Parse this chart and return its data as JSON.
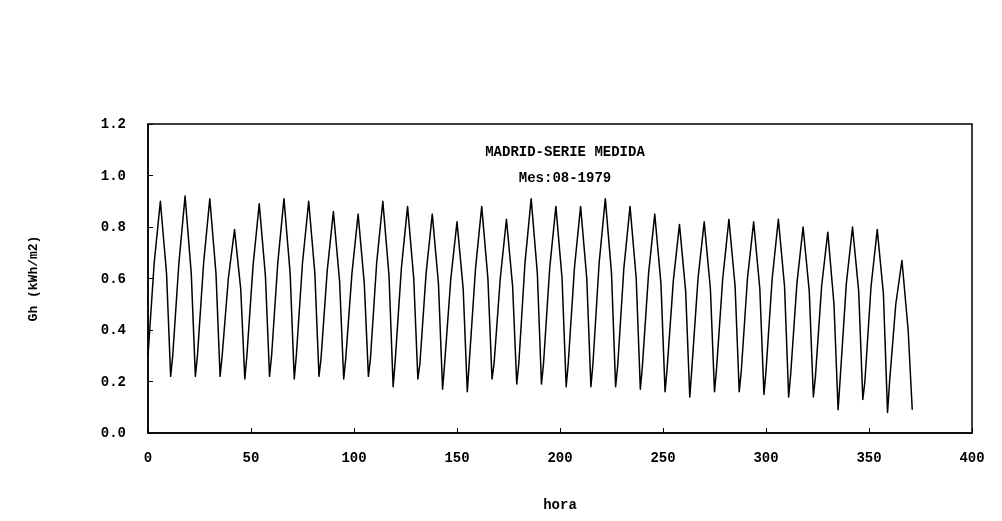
{
  "chart_data": {
    "type": "line",
    "title": "MADRID-SERIE MEDIDA",
    "subtitle": "Mes:08-1979",
    "xlabel": "hora",
    "ylabel": "Gh (kWh/m2)",
    "xlim": [
      0,
      400
    ],
    "xticks": [
      0,
      50,
      100,
      150,
      200,
      250,
      300,
      350,
      400
    ],
    "ylim": [
      0,
      1.2
    ],
    "yticks": [
      {
        "value": 0,
        "label": "0.0"
      },
      {
        "value": 0.2,
        "label": "0.2"
      },
      {
        "value": 0.4,
        "label": "0.4"
      },
      {
        "value": 0.6,
        "label": "0.6"
      },
      {
        "value": 0.8,
        "label": "0.8"
      },
      {
        "value": 1,
        "label": "1.0"
      },
      {
        "value": 1.2,
        "label": "1.2"
      }
    ],
    "grid": false,
    "marker": "none",
    "line_style": "solid",
    "series": [
      {
        "color": "#000000",
        "x": [
          0,
          3,
          6,
          9,
          11,
          12,
          15,
          18,
          21,
          23,
          24,
          27,
          30,
          33,
          35,
          36,
          39,
          42,
          45,
          47,
          48,
          51,
          54,
          57,
          59,
          60,
          63,
          66,
          69,
          71,
          72,
          75,
          78,
          81,
          83,
          84,
          87,
          90,
          93,
          95,
          96,
          99,
          102,
          105,
          107,
          108,
          111,
          114,
          117,
          119,
          120,
          123,
          126,
          129,
          131,
          132,
          135,
          138,
          141,
          143,
          144,
          147,
          150,
          153,
          155,
          156,
          159,
          162,
          165,
          167,
          168,
          171,
          174,
          177,
          179,
          180,
          183,
          186,
          189,
          191,
          192,
          195,
          198,
          201,
          203,
          204,
          207,
          210,
          213,
          215,
          216,
          219,
          222,
          225,
          227,
          228,
          231,
          234,
          237,
          239,
          240,
          243,
          246,
          249,
          251,
          252,
          255,
          258,
          261,
          263,
          264,
          267,
          270,
          273,
          275,
          276,
          279,
          282,
          285,
          287,
          288,
          291,
          294,
          297,
          299,
          300,
          303,
          306,
          309,
          311,
          312,
          315,
          318,
          321,
          323,
          324,
          327,
          330,
          333,
          335,
          336,
          339,
          342,
          345,
          347,
          348,
          351,
          354,
          357,
          359,
          360,
          363,
          366,
          369,
          371
        ],
        "values": [
          0.3,
          0.66,
          0.9,
          0.62,
          0.22,
          0.3,
          0.66,
          0.92,
          0.62,
          0.22,
          0.3,
          0.66,
          0.91,
          0.62,
          0.22,
          0.3,
          0.6,
          0.79,
          0.56,
          0.21,
          0.3,
          0.65,
          0.89,
          0.61,
          0.22,
          0.3,
          0.66,
          0.91,
          0.62,
          0.21,
          0.3,
          0.66,
          0.9,
          0.62,
          0.22,
          0.29,
          0.63,
          0.86,
          0.59,
          0.21,
          0.29,
          0.62,
          0.85,
          0.58,
          0.22,
          0.29,
          0.66,
          0.9,
          0.61,
          0.18,
          0.28,
          0.64,
          0.88,
          0.6,
          0.21,
          0.27,
          0.62,
          0.85,
          0.58,
          0.17,
          0.27,
          0.6,
          0.82,
          0.56,
          0.16,
          0.28,
          0.64,
          0.88,
          0.6,
          0.21,
          0.27,
          0.6,
          0.83,
          0.57,
          0.19,
          0.27,
          0.66,
          0.91,
          0.62,
          0.19,
          0.27,
          0.64,
          0.88,
          0.6,
          0.18,
          0.27,
          0.64,
          0.88,
          0.6,
          0.18,
          0.27,
          0.66,
          0.91,
          0.62,
          0.18,
          0.26,
          0.64,
          0.88,
          0.6,
          0.17,
          0.26,
          0.62,
          0.85,
          0.58,
          0.16,
          0.25,
          0.59,
          0.81,
          0.55,
          0.14,
          0.25,
          0.6,
          0.82,
          0.56,
          0.16,
          0.25,
          0.6,
          0.83,
          0.57,
          0.16,
          0.24,
          0.6,
          0.82,
          0.56,
          0.15,
          0.24,
          0.6,
          0.83,
          0.57,
          0.14,
          0.23,
          0.58,
          0.8,
          0.55,
          0.14,
          0.22,
          0.57,
          0.78,
          0.5,
          0.09,
          0.21,
          0.58,
          0.8,
          0.55,
          0.13,
          0.2,
          0.57,
          0.79,
          0.54,
          0.08,
          0.2,
          0.5,
          0.67,
          0.4,
          0.09
        ]
      }
    ]
  }
}
